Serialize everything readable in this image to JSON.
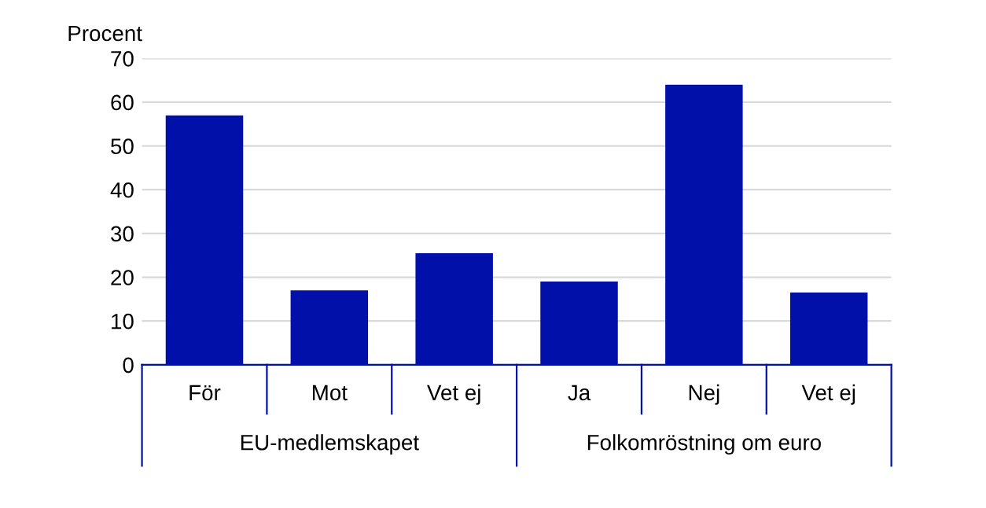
{
  "chart_data": {
    "type": "bar",
    "ylabel": "Procent",
    "categories": [
      "För",
      "Mot",
      "Vet ej",
      "Ja",
      "Nej",
      "Vet ej"
    ],
    "values": [
      57,
      17,
      25.5,
      19,
      64,
      16.5
    ],
    "color": "#0010a8",
    "ylim": [
      0,
      70
    ],
    "yticks": [
      0,
      10,
      20,
      30,
      40,
      50,
      60,
      70
    ],
    "grid": "y",
    "annotations": [
      "EU-medlemskapet",
      "Folkomröstning om euro"
    ]
  }
}
